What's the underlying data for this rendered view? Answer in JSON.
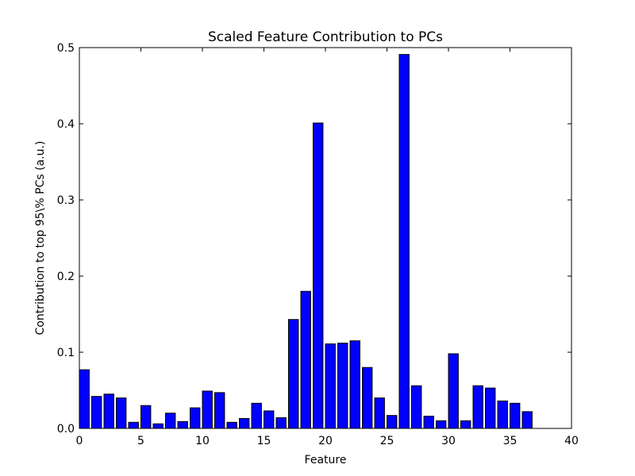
{
  "chart_data": {
    "type": "bar",
    "title": "Scaled Feature Contribution to PCs",
    "xlabel": "Feature",
    "ylabel": "Contribution to top 95\\% PCs (a.u.)",
    "xlim": [
      0,
      40
    ],
    "ylim": [
      0,
      0.5
    ],
    "xticks": [
      "0",
      "5",
      "10",
      "15",
      "20",
      "25",
      "30",
      "35",
      "40"
    ],
    "yticks": [
      "0.0",
      "0.1",
      "0.2",
      "0.3",
      "0.4",
      "0.5"
    ],
    "grid": false,
    "bar_color": "#0000ff",
    "edge_color": "#000000",
    "x": [
      0,
      1,
      2,
      3,
      4,
      5,
      6,
      7,
      8,
      9,
      10,
      11,
      12,
      13,
      14,
      15,
      16,
      17,
      18,
      19,
      20,
      21,
      22,
      23,
      24,
      25,
      26,
      27,
      28,
      29,
      30,
      31,
      32,
      33,
      34,
      35,
      36
    ],
    "values": [
      0.077,
      0.042,
      0.045,
      0.04,
      0.008,
      0.03,
      0.006,
      0.02,
      0.009,
      0.027,
      0.049,
      0.047,
      0.008,
      0.013,
      0.033,
      0.023,
      0.014,
      0.143,
      0.18,
      0.401,
      0.111,
      0.112,
      0.115,
      0.08,
      0.04,
      0.017,
      0.491,
      0.056,
      0.016,
      0.01,
      0.098,
      0.01,
      0.056,
      0.053,
      0.036,
      0.033,
      0.022
    ]
  }
}
